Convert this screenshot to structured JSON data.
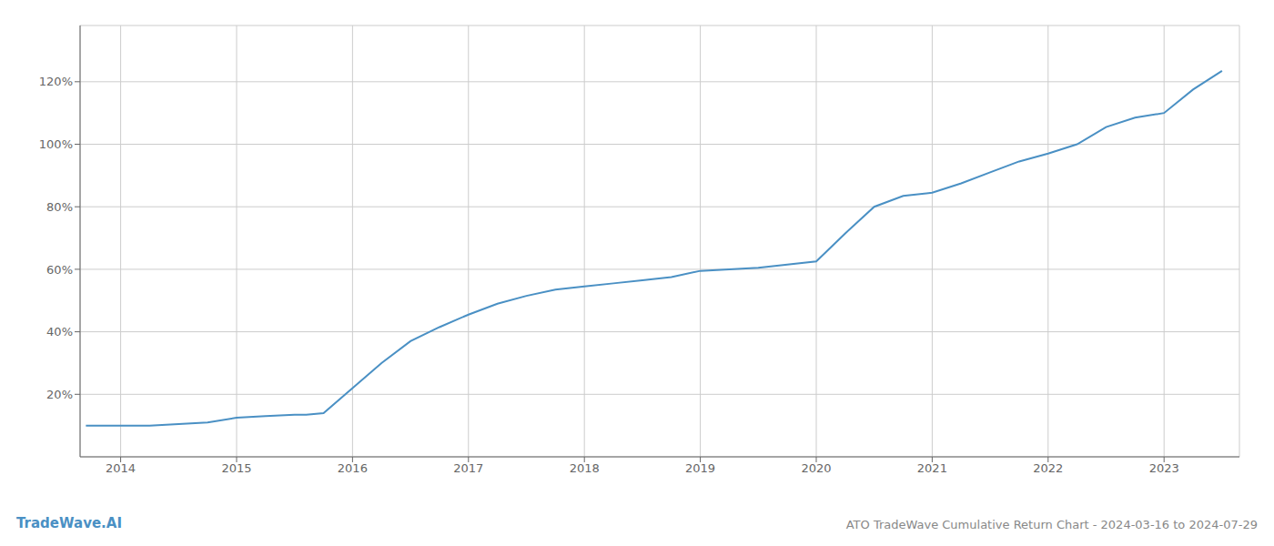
{
  "chart_data": {
    "type": "line",
    "title": "ATO TradeWave Cumulative Return Chart - 2024-03-16 to 2024-07-29",
    "annotations": [
      "TradeWave.AI"
    ],
    "color": "#4a90c4",
    "grid": true,
    "x": [
      2013.7,
      2014.0,
      2014.25,
      2014.5,
      2014.75,
      2015.0,
      2015.25,
      2015.5,
      2015.6,
      2015.75,
      2016.0,
      2016.25,
      2016.5,
      2016.75,
      2017.0,
      2017.25,
      2017.5,
      2017.75,
      2018.0,
      2018.25,
      2018.5,
      2018.75,
      2019.0,
      2019.25,
      2019.5,
      2019.75,
      2020.0,
      2020.25,
      2020.5,
      2020.75,
      2021.0,
      2021.25,
      2021.5,
      2021.75,
      2022.0,
      2022.25,
      2022.5,
      2022.75,
      2023.0,
      2023.25,
      2023.5
    ],
    "values": [
      0.1,
      0.1,
      0.1,
      0.105,
      0.11,
      0.125,
      0.13,
      0.135,
      0.135,
      0.14,
      0.22,
      0.3,
      0.37,
      0.415,
      0.455,
      0.49,
      0.515,
      0.535,
      0.545,
      0.555,
      0.565,
      0.575,
      0.595,
      0.6,
      0.605,
      0.615,
      0.625,
      0.715,
      0.8,
      0.835,
      0.845,
      0.875,
      0.91,
      0.945,
      0.97,
      1.0,
      1.055,
      1.085,
      1.1,
      1.175,
      1.235
    ],
    "xlim": [
      2013.65,
      2023.65
    ],
    "xticks": [
      2014,
      2015,
      2016,
      2017,
      2018,
      2019,
      2020,
      2021,
      2022,
      2023
    ],
    "ylim": [
      0.0,
      1.38
    ],
    "yticks": [
      {
        "value": 0.2,
        "label": "20%"
      },
      {
        "value": 0.4,
        "label": "40%"
      },
      {
        "value": 0.6,
        "label": "60%"
      },
      {
        "value": 0.8,
        "label": "80%"
      },
      {
        "value": 1.0,
        "label": "100%"
      },
      {
        "value": 1.2,
        "label": "120%"
      }
    ]
  }
}
